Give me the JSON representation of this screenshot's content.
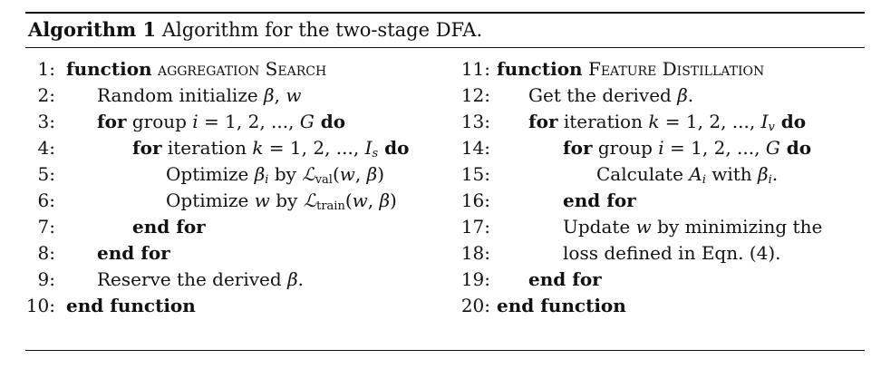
{
  "caption": {
    "label": "Algorithm 1",
    "text": "Algorithm for the two-stage DFA."
  },
  "left": {
    "l1": {
      "num": "1:",
      "kw": "function",
      "name": "aggregation Search"
    },
    "l2": {
      "num": "2:",
      "text": "Random initialize ",
      "m1": "β",
      "sep": ", ",
      "m2": "w"
    },
    "l3": {
      "num": "3:",
      "kw": "for",
      "text": " group ",
      "var": "i",
      "eq": " = 1, 2, ..., ",
      "lim": "G",
      "kw2": " do"
    },
    "l4": {
      "num": "4:",
      "kw": "for",
      "text": " iteration ",
      "var": "k",
      "eq": " = 1, 2, ..., ",
      "lim": "I",
      "lim_sub": "s",
      "kw2": " do"
    },
    "l5": {
      "num": "5:",
      "text": "Optimize ",
      "var": "β",
      "var_sub": "i",
      "by": " by ",
      "loss": "ℒ",
      "loss_sub": "val",
      "args_a": "(",
      "arg1": "w",
      "argsep": ", ",
      "arg2": "β",
      "args_b": ")"
    },
    "l6": {
      "num": "6:",
      "text": "Optimize ",
      "var": "w",
      "by": " by ",
      "loss": "ℒ",
      "loss_sub": "train",
      "args_a": "(",
      "arg1": "w",
      "argsep": ", ",
      "arg2": "β",
      "args_b": ")"
    },
    "l7": {
      "num": "7:",
      "kw": "end for"
    },
    "l8": {
      "num": "8:",
      "kw": "end for"
    },
    "l9": {
      "num": "9:",
      "text": "Reserve the derived ",
      "var": "β",
      "end": "."
    },
    "l10": {
      "num": "10:",
      "kw": "end function"
    }
  },
  "right": {
    "l11": {
      "num": "11:",
      "kw": "function",
      "name": "Feature Distillation"
    },
    "l12": {
      "num": "12:",
      "text": "Get the derived ",
      "var": "β",
      "end": "."
    },
    "l13": {
      "num": "13:",
      "kw": "for",
      "text": " iteration ",
      "var": "k",
      "eq": " = 1, 2, ..., ",
      "lim": "I",
      "lim_sub": "v",
      "kw2": " do"
    },
    "l14": {
      "num": "14:",
      "kw": "for",
      "text": " group ",
      "var": "i",
      "eq": " = 1, 2, ..., ",
      "lim": "G",
      "kw2": " do"
    },
    "l15": {
      "num": "15:",
      "text": "Calculate ",
      "var": "A",
      "var_sub": "i",
      "with": " with ",
      "var2": "β",
      "var2_sub": "i",
      "end": "."
    },
    "l16": {
      "num": "16:",
      "kw": "end for"
    },
    "l17": {
      "num": "17:",
      "text": "Update ",
      "var": "w",
      "text2": " by minimizing the"
    },
    "l18": {
      "num": "18:",
      "text": "loss defined in Eqn. (4)."
    },
    "l19": {
      "num": "19:",
      "kw": "end for"
    },
    "l20": {
      "num": "20:",
      "kw": "end function"
    }
  }
}
